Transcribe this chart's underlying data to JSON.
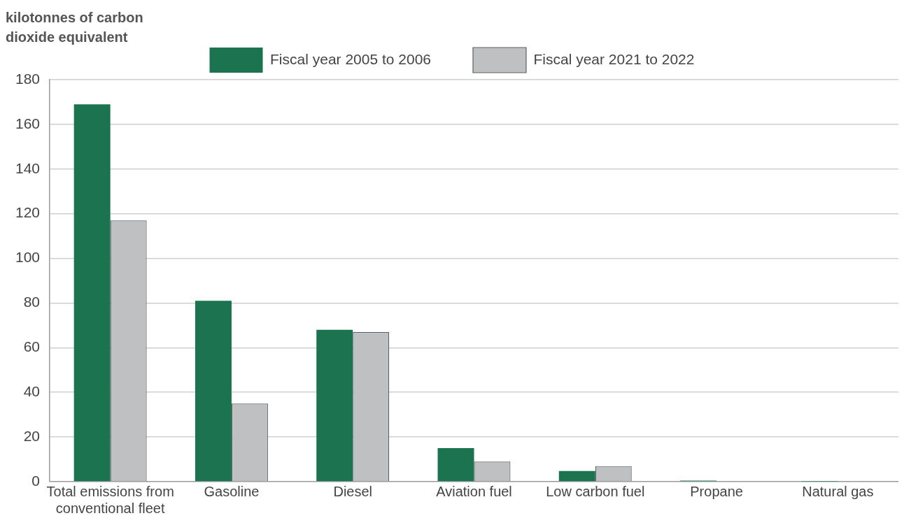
{
  "chart_data": {
    "type": "bar",
    "ylabel": "kilotonnes of carbon dioxide equivalent",
    "categories": [
      "Total emissions from conventional fleet",
      "Gasoline",
      "Diesel",
      "Aviation fuel",
      "Low carbon fuel",
      "Propane",
      "Natural gas"
    ],
    "series": [
      {
        "name": "Fiscal year 2005 to 2006",
        "color": "#1b7350",
        "values": [
          169,
          81,
          68,
          15,
          4.8,
          0.5,
          0.1
        ]
      },
      {
        "name": "Fiscal year 2021 to 2022",
        "color": "#bfc0c2",
        "values": [
          117,
          35,
          67,
          9,
          7,
          0.2,
          0.2
        ]
      }
    ],
    "ylim": [
      0,
      180
    ],
    "yticks": [
      0,
      20,
      40,
      60,
      80,
      100,
      120,
      140,
      160,
      180
    ],
    "grid": "y",
    "legend": "top"
  }
}
